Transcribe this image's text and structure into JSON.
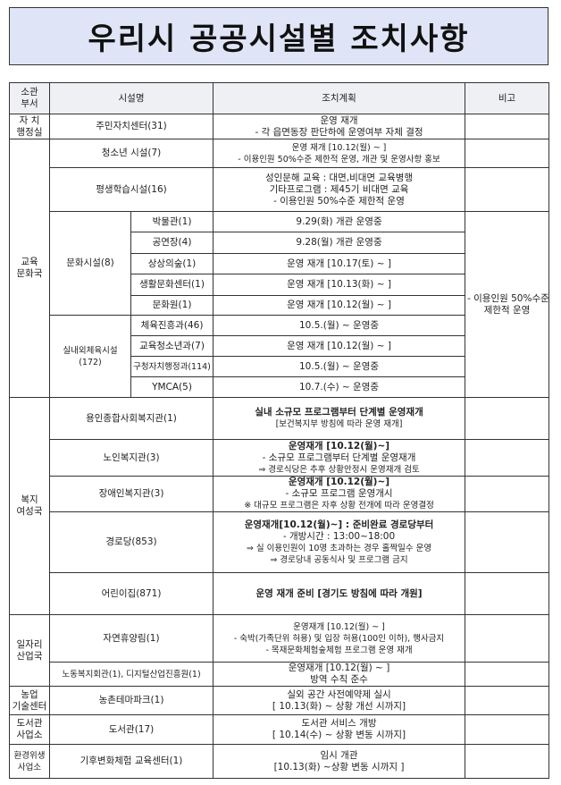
{
  "title": "우리시 공공시설별 조치사항",
  "header": {
    "dept": "소관\n부서",
    "facility": "시설명",
    "plan": "조치계획",
    "note": "비고"
  },
  "rows": {
    "r1": {
      "dept": "자 치\n행정실",
      "facility": "주민자치센터(31)",
      "plan": [
        "운영 재개",
        "- 각 읍면동장 판단하에 운영여부 자체 결정"
      ]
    },
    "r2": {
      "dept": "교육\n문화국",
      "facility": "청소년 시설(7)",
      "plan": [
        "운영 재개 [10.12(월) ~ ]",
        "- 이용인원 50%수준 제한적 운영, 개관 및 운영사항 홍보"
      ]
    },
    "r3": {
      "facility": "평생학습시설(16)",
      "plan": [
        "성인문해 교육 : 대면,비대면 교육병행",
        "기타프로그램 : 제45기 비대면 교육",
        "- 이용인원 50%수준 제한적 운영"
      ]
    },
    "culture": {
      "group": "문화시설(8)",
      "items": [
        {
          "name": "박물관(1)",
          "plan": "9.29(화) 개관 운영중"
        },
        {
          "name": "공연장(4)",
          "plan": "9.28(월) 개관 운영중"
        },
        {
          "name": "상상의숲(1)",
          "plan": "운영 재개 [10.17(토) ~ ]"
        },
        {
          "name": "생활문화센터(1)",
          "plan": "운영 재개 [10.13(화) ~ ]"
        },
        {
          "name": "문화원(1)",
          "plan": "운영 재개 [10.12(월) ~ ]"
        }
      ]
    },
    "sports": {
      "group": "실내외체육시설(172)",
      "items": [
        {
          "name": "체육진흥과(46)",
          "plan": "10.5.(월) ~ 운영중"
        },
        {
          "name": "교육청소년과(7)",
          "plan": "운영 재개 [10.12(월) ~ ]"
        },
        {
          "name": "구청자치행정과(114)",
          "plan": "10.5.(월) ~ 운영중"
        },
        {
          "name": "YMCA(5)",
          "plan": "10.7.(수) ~ 운영중"
        }
      ]
    },
    "edu_note": [
      "- 이용인원 50%수준",
      "제한적 운영"
    ],
    "welfare": {
      "dept": "복지\n여성국",
      "items": [
        {
          "name": "용인종합사회복지관(1)",
          "plan": [
            {
              "t": "실내 소규모 프로그램부터 단계별 운영재개",
              "b": true
            },
            {
              "t": "[보건복지부 방침에 따라 운영 재개]",
              "b": false
            }
          ]
        },
        {
          "name": "노인복지관(3)",
          "plan": [
            {
              "t": "운영재개 [10.12(월)~]",
              "b": true
            },
            {
              "t": "- 소규모 프로그램부터 단계별 운영재개",
              "b": false
            },
            {
              "t": "⇒ 경로식당은 추후 상황안정시 운영재개 검토",
              "b": false
            }
          ]
        },
        {
          "name": "장애인복지관(3)",
          "plan": [
            {
              "t": "운영재개 [10.12(월)~]",
              "b": true
            },
            {
              "t": "- 소규모 프로그램 운영개시",
              "b": false
            },
            {
              "t": "※ 대규모 프로그램은 자후 상황 전개에 따라 운영결정",
              "b": false
            }
          ]
        },
        {
          "name": "경로당(853)",
          "plan": [
            {
              "t": "운영재개[10.12(월)~] : 준비완료 경로당부터",
              "b": true
            },
            {
              "t": "- 개방시간 : 13:00~18:00",
              "b": false
            },
            {
              "t": "⇒ 실 이용인원이 10명 초과하는 경우 홀짝일수 운영",
              "b": false
            },
            {
              "t": "⇒ 경로당내 공동식사 및 프로그램 금지",
              "b": false
            }
          ]
        },
        {
          "name": "어린이집(871)",
          "plan": [
            {
              "t": "운영 재개 준비 [경기도 방침에 따라 개원]",
              "b": true
            }
          ]
        }
      ]
    },
    "jobs": {
      "dept": "일자리\n산업국",
      "items": [
        {
          "name": "자연휴양림(1)",
          "plan": [
            "운영재개 [10.12(월) ~ ]",
            "- 숙박(가족단위 허용) 및 입장 허용(100인 이하), 행사금지",
            "- 목재문화체험숲체험 프로그램 운영 재개"
          ]
        },
        {
          "name": "노동복지회관(1), 디지털산업진흥원(1)",
          "plan": [
            "운영재개 [10.12(월) ~ ]",
            "방역 수칙 준수"
          ]
        }
      ]
    },
    "agri": {
      "dept": "농업\n기술센터",
      "facility": "농촌테마파크(1)",
      "plan": [
        "실외 공간 사전예약제 실시",
        "[ 10.13(화) ~ 상황 개선 시까지]"
      ]
    },
    "library": {
      "dept": "도서관\n사업소",
      "facility": "도서관(17)",
      "plan": [
        "도서관 서비스 개방",
        "[ 10.14(수) ~ 상황 변동 시까지]"
      ]
    },
    "env": {
      "dept": "환경위생\n사업소",
      "facility": "기후변화체험 교육센터(1)",
      "plan": [
        "임시 개관",
        "[10.13(화) ~상황 변동 시까지 ]"
      ]
    }
  }
}
